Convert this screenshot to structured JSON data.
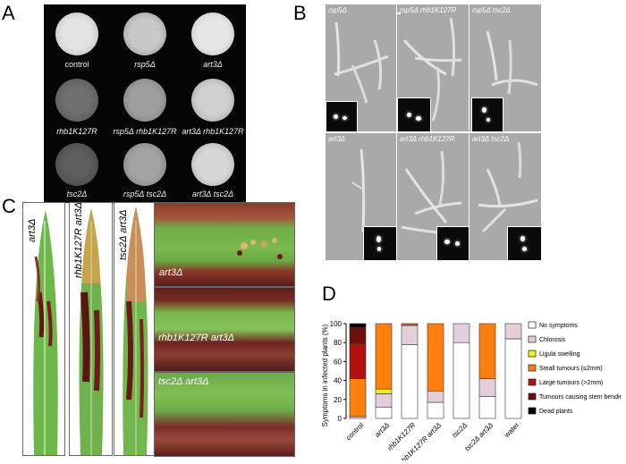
{
  "panels": {
    "a": "A",
    "b": "B",
    "c": "C",
    "d": "D"
  },
  "panel_a": {
    "labels": [
      "control",
      "rsp5Δ",
      "art3Δ",
      "rhb1K127R",
      "rsp5Δ rhb1K127R",
      "art3Δ rhb1K127R",
      "tsc2Δ",
      "rsp5Δ tsc2Δ",
      "art3Δ tsc2Δ"
    ]
  },
  "panel_b": {
    "labels": [
      "rsp5Δ",
      "rsp5Δ rhb1K127R",
      "rsp5Δ tsc2Δ",
      "art3Δ",
      "art3Δ rhb1K127R",
      "art3Δ tsc2Δ"
    ]
  },
  "panel_c": {
    "leaf_labels": [
      "art3Δ",
      "rhb1K127R art3Δ",
      "tsc2Δ art3Δ"
    ],
    "closeup_labels": [
      "art3Δ",
      "rhb1K127R art3Δ",
      "tsc2Δ  art3Δ"
    ]
  },
  "chart_data": {
    "type": "bar",
    "stacked": true,
    "ylabel": "Symptoms in infected plants (%)",
    "ylim": [
      0,
      100
    ],
    "yticks": [
      0,
      20,
      40,
      60,
      80,
      100
    ],
    "categories": [
      "control",
      "art3Δ",
      "rhb1K127R",
      "rhb1K127R art3Δ",
      "tsc2Δ",
      "tsc2Δ art3Δ",
      "water"
    ],
    "series": [
      {
        "name": "No symptoms",
        "color": "#ffffff",
        "values": [
          0,
          12,
          78,
          17,
          80,
          23,
          84
        ]
      },
      {
        "name": "Chlorosis",
        "color": "#e3cfdc",
        "values": [
          2,
          14,
          20,
          12,
          20,
          19,
          16
        ]
      },
      {
        "name": "Ligula swelling",
        "color": "#f4ee1f",
        "values": [
          0,
          5,
          1,
          0,
          0,
          0,
          0
        ]
      },
      {
        "name": "Small tumours (≤2mm)",
        "color": "#ff7f0e",
        "values": [
          40,
          69,
          1,
          71,
          0,
          58,
          0
        ]
      },
      {
        "name": "Large tumours (>2mm)",
        "color": "#b3110f",
        "values": [
          37,
          0,
          0,
          0,
          0,
          0,
          0
        ]
      },
      {
        "name": "Tumours causing stem bending",
        "color": "#6e0d0d",
        "values": [
          17,
          0,
          0,
          0,
          0,
          0,
          0
        ]
      },
      {
        "name": "Dead plants",
        "color": "#000000",
        "values": [
          4,
          0,
          0,
          0,
          0,
          0,
          0
        ]
      }
    ]
  }
}
